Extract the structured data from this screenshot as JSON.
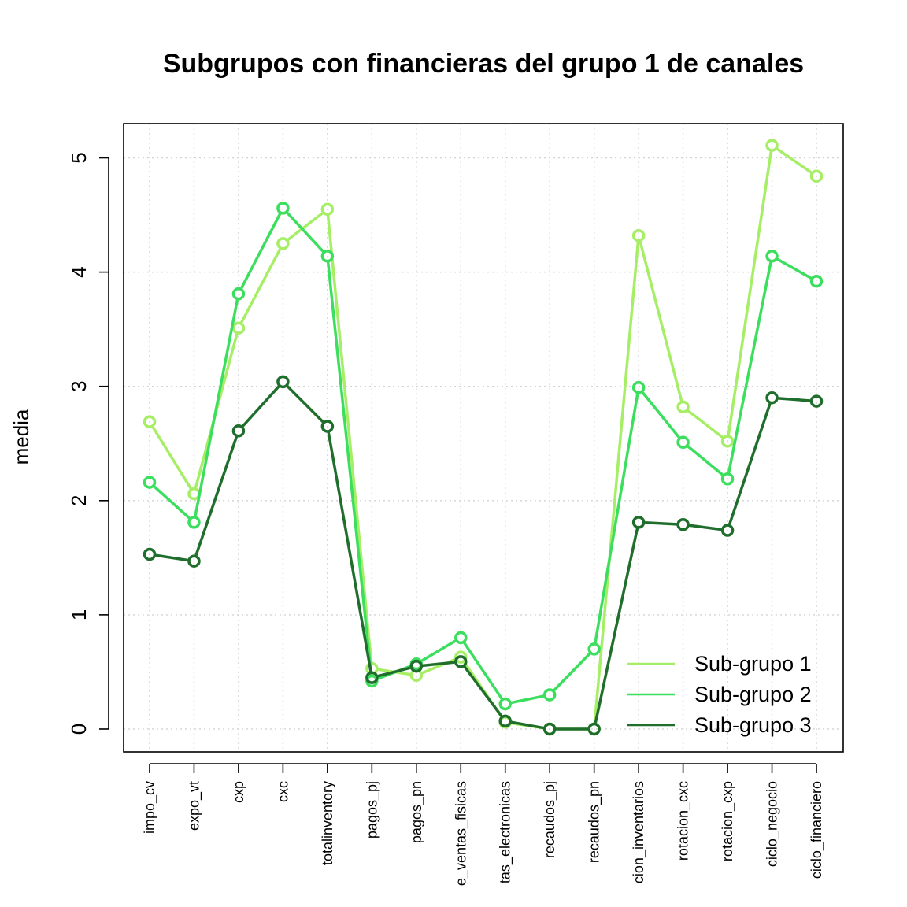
{
  "chart_data": {
    "type": "line",
    "title": "Subgrupos con financieras del grupo 1 de canales",
    "xlabel": "",
    "ylabel": "media",
    "ylim": [
      -0.2,
      5.3
    ],
    "yticks": [
      0,
      1,
      2,
      3,
      4,
      5
    ],
    "grid": true,
    "legend_position": "bottom-right",
    "categories": [
      "impo_cv",
      "expo_vt",
      "cxp",
      "cxc",
      "totalinventory",
      "pagos_pj",
      "pagos_pn",
      "e_ventas_fisicas",
      "tas_electronicas",
      "recaudos_pj",
      "recaudos_pn",
      "cion_inventarios",
      "rotacion_cxc",
      "rotacion_cxp",
      "ciclo_negocio",
      "ciclo_financiero"
    ],
    "series": [
      {
        "name": "Sub-grupo 1",
        "color": "#a6ee66",
        "values": [
          2.69,
          2.06,
          3.51,
          4.25,
          4.55,
          0.53,
          0.47,
          0.63,
          0.06,
          0.0,
          0.0,
          4.32,
          2.82,
          2.52,
          5.11,
          4.84
        ]
      },
      {
        "name": "Sub-grupo 2",
        "color": "#3cde5e",
        "values": [
          2.16,
          1.81,
          3.81,
          4.56,
          4.14,
          0.42,
          0.57,
          0.8,
          0.22,
          0.3,
          0.7,
          2.99,
          2.51,
          2.19,
          4.14,
          3.92
        ]
      },
      {
        "name": "Sub-grupo 3",
        "color": "#1f6e2c",
        "values": [
          1.53,
          1.47,
          2.61,
          3.04,
          2.65,
          0.45,
          0.55,
          0.59,
          0.07,
          0.0,
          0.0,
          1.81,
          1.79,
          1.74,
          2.9,
          2.87
        ]
      }
    ]
  }
}
